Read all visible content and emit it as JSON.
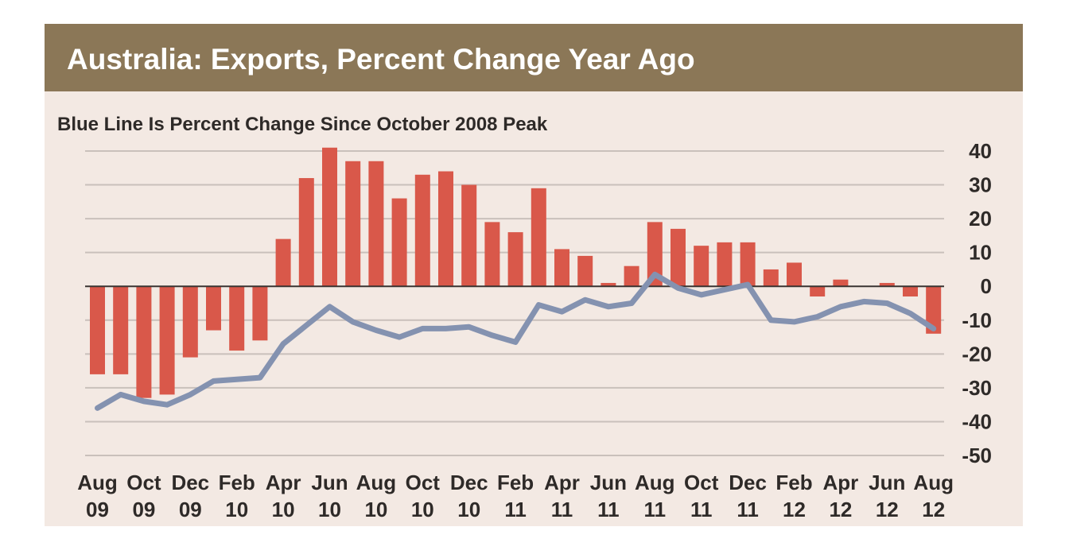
{
  "chart_data": {
    "type": "bar",
    "title": "Australia:  Exports, Percent Change Year Ago",
    "subtitle": "Blue Line Is Percent Change Since October 2008 Peak",
    "xlabel": "",
    "ylabel": "",
    "ylim": [
      -50,
      40
    ],
    "yticks": [
      40,
      30,
      20,
      10,
      0,
      -10,
      -20,
      -30,
      -40,
      -50
    ],
    "grid": true,
    "x_tick_labels": [
      {
        "line1": "Aug",
        "line2": "09"
      },
      {
        "line1": "Oct",
        "line2": "09"
      },
      {
        "line1": "Dec",
        "line2": "09"
      },
      {
        "line1": "Feb",
        "line2": "10"
      },
      {
        "line1": "Apr",
        "line2": "10"
      },
      {
        "line1": "Jun",
        "line2": "10"
      },
      {
        "line1": "Aug",
        "line2": "10"
      },
      {
        "line1": "Oct",
        "line2": "10"
      },
      {
        "line1": "Dec",
        "line2": "10"
      },
      {
        "line1": "Feb",
        "line2": "11"
      },
      {
        "line1": "Apr",
        "line2": "11"
      },
      {
        "line1": "Jun",
        "line2": "11"
      },
      {
        "line1": "Aug",
        "line2": "11"
      },
      {
        "line1": "Oct",
        "line2": "11"
      },
      {
        "line1": "Dec",
        "line2": "11"
      },
      {
        "line1": "Feb",
        "line2": "12"
      },
      {
        "line1": "Apr",
        "line2": "12"
      },
      {
        "line1": "Jun",
        "line2": "12"
      },
      {
        "line1": "Aug",
        "line2": "12"
      }
    ],
    "categories": [
      "2009-08",
      "2009-09",
      "2009-10",
      "2009-11",
      "2009-12",
      "2010-01",
      "2010-02",
      "2010-03",
      "2010-04",
      "2010-05",
      "2010-06",
      "2010-07",
      "2010-08",
      "2010-09",
      "2010-10",
      "2010-11",
      "2010-12",
      "2011-01",
      "2011-02",
      "2011-03",
      "2011-04",
      "2011-05",
      "2011-06",
      "2011-07",
      "2011-08",
      "2011-09",
      "2011-10",
      "2011-11",
      "2011-12",
      "2012-01",
      "2012-02",
      "2012-03",
      "2012-04",
      "2012-05",
      "2012-06",
      "2012-07",
      "2012-08"
    ],
    "series": [
      {
        "type": "bar",
        "color": "#d9584a",
        "values": [
          -26,
          -26,
          -33,
          -32,
          -21,
          -13,
          -19,
          -16,
          14,
          32,
          41,
          37,
          37,
          26,
          33,
          34,
          30,
          19,
          16,
          29,
          11,
          9,
          1,
          6,
          19,
          17,
          12,
          13,
          13,
          5,
          7,
          -3,
          2,
          0,
          1,
          -3,
          -14
        ]
      },
      {
        "type": "line",
        "color": "#8492b0",
        "values": [
          -36,
          -32,
          -34,
          -35,
          -32,
          -28,
          -27.5,
          -27,
          -17,
          -11.5,
          -6,
          -10.5,
          -13,
          -15,
          -12.5,
          -12.5,
          -12,
          -14.5,
          -16.5,
          -5.5,
          -7.5,
          -4,
          -6,
          -5,
          3.5,
          -0.5,
          -2.5,
          -1,
          0.5,
          -10,
          -10.5,
          -9,
          -6,
          -4.5,
          -5,
          -8,
          -12.5
        ]
      }
    ]
  }
}
